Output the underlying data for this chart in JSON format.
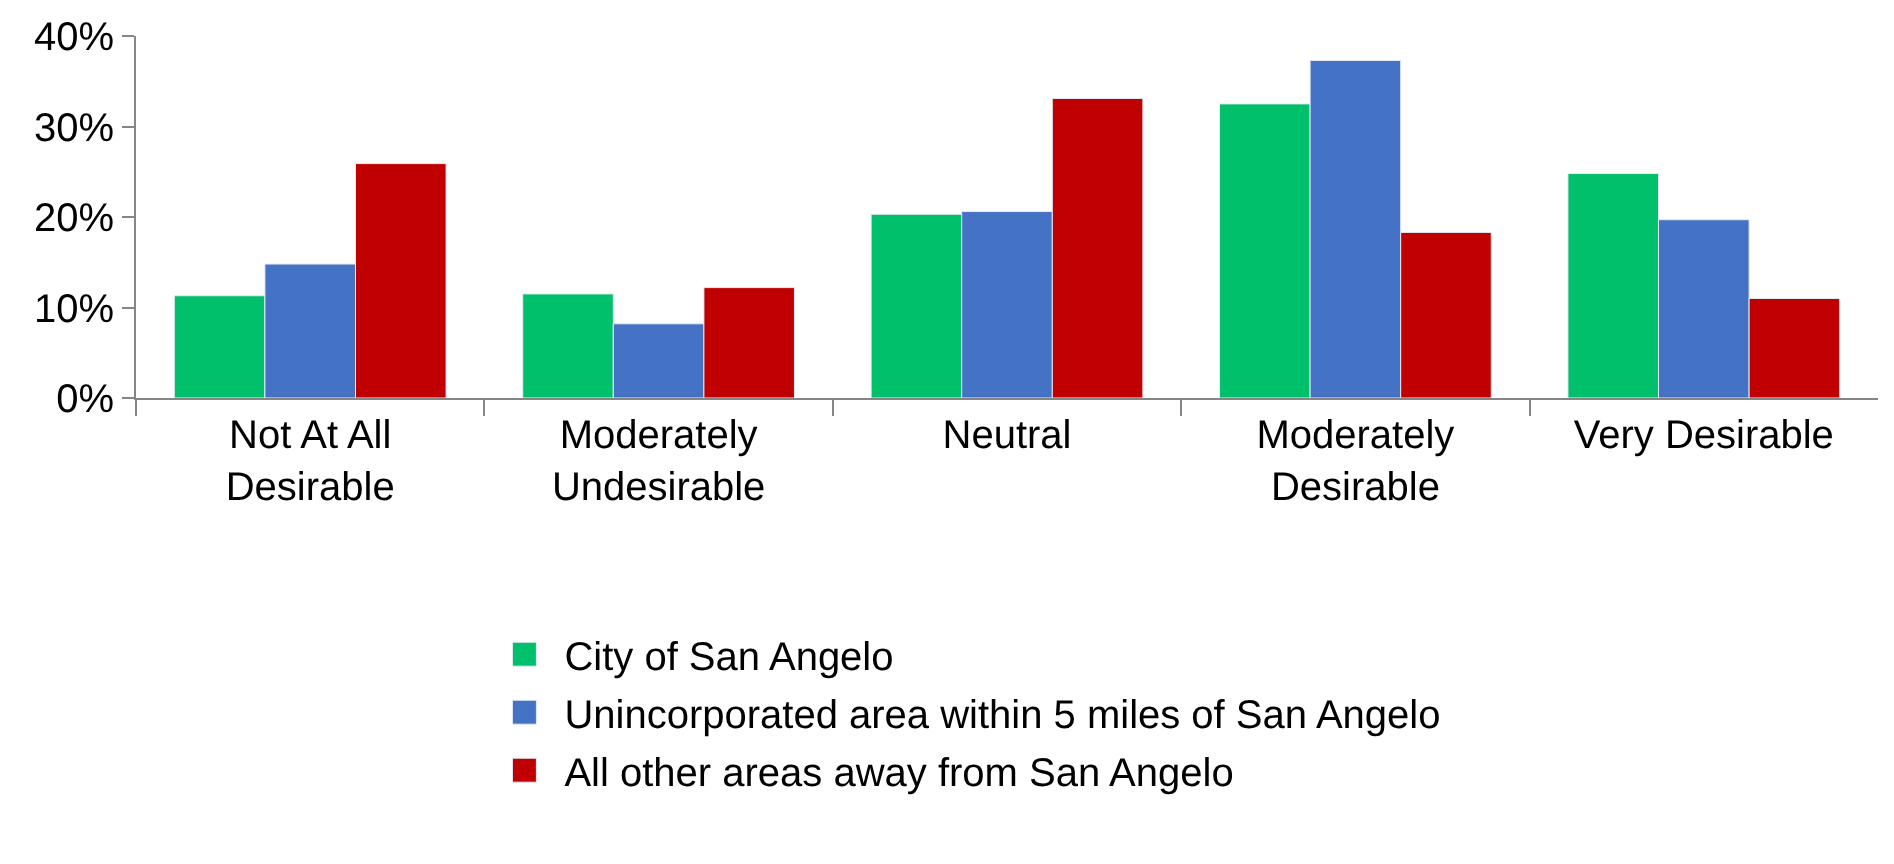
{
  "chart_data": {
    "type": "bar",
    "categories": [
      "Not At All Desirable",
      "Moderately Undesirable",
      "Neutral",
      "Moderately Desirable",
      "Very Desirable"
    ],
    "series": [
      {
        "name": "City of San Angelo",
        "color": "#00c06b",
        "values": [
          11.3,
          11.5,
          20.3,
          32.5,
          24.8
        ]
      },
      {
        "name": "Unincorporated area within 5 miles of San Angelo",
        "color": "#4472c4",
        "values": [
          14.8,
          8.2,
          20.6,
          37.3,
          19.7
        ]
      },
      {
        "name": "All other areas away from San Angelo",
        "color": "#c00000",
        "values": [
          25.9,
          12.2,
          33.1,
          18.3,
          11.0
        ]
      }
    ],
    "ylim": [
      0,
      40
    ],
    "yticks": [
      {
        "value": 0,
        "label": "0%"
      },
      {
        "value": 10,
        "label": "10%"
      },
      {
        "value": 20,
        "label": "20%"
      },
      {
        "value": 30,
        "label": "30%"
      },
      {
        "value": 40,
        "label": "40%"
      }
    ],
    "legend": "bottom"
  }
}
